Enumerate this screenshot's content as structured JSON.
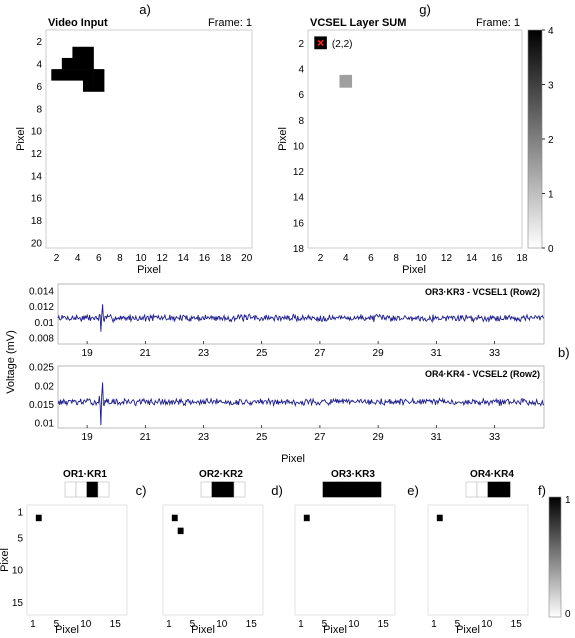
{
  "panels": {
    "a": {
      "letter": "a)",
      "title": "Video Input",
      "frame": "Frame: 1",
      "xlabel": "Pixel",
      "ylabel": "Pixel",
      "xlim": [
        1,
        20.5
      ],
      "ylim": [
        1,
        20.5
      ],
      "xticks": [
        2,
        4,
        6,
        8,
        10,
        12,
        14,
        16,
        18,
        20
      ],
      "yticks": [
        2,
        4,
        6,
        8,
        10,
        12,
        14,
        16,
        18,
        20
      ],
      "pixels": [
        [
          4,
          3
        ],
        [
          5,
          3
        ],
        [
          3,
          4
        ],
        [
          4,
          4
        ],
        [
          5,
          4
        ],
        [
          2,
          5
        ],
        [
          3,
          5
        ],
        [
          4,
          5
        ],
        [
          5,
          5
        ],
        [
          6,
          5
        ],
        [
          5,
          6
        ],
        [
          6,
          6
        ]
      ]
    },
    "g": {
      "letter": "g)",
      "title": "VCSEL Layer SUM",
      "frame": "Frame: 1",
      "xlabel": "Pixel",
      "ylabel": "Pixel",
      "xlim": [
        1,
        18
      ],
      "ylim": [
        1,
        18
      ],
      "xticks": [
        2,
        4,
        6,
        8,
        10,
        12,
        14,
        16,
        18
      ],
      "yticks": [
        2,
        4,
        6,
        8,
        10,
        12,
        14,
        16,
        18
      ],
      "cells": [
        {
          "x": 2,
          "y": 2,
          "v": 4
        },
        {
          "x": 4,
          "y": 5,
          "v": 1.5
        }
      ],
      "marker": {
        "x": 2,
        "y": 2,
        "label": "(2,2)",
        "color": "#ff2020"
      },
      "colorbar": {
        "min": 0,
        "max": 4,
        "ticks": [
          0,
          1,
          2,
          3,
          4
        ]
      }
    },
    "b": {
      "letter": "b)",
      "ylabel": "Voltage (mV)",
      "xlabel": "Pixel",
      "xlim": [
        18,
        34.7
      ],
      "xticks": [
        19,
        21,
        23,
        25,
        27,
        29,
        31,
        33
      ],
      "line_color": "#1f1f8f",
      "traces": [
        {
          "label": "OR3·KR3 - VCSEL1 (Row2)",
          "ylim": [
            0.0072,
            0.0148
          ],
          "yticks": [
            0.008,
            0.01,
            0.012,
            0.014
          ],
          "ytick_labels": [
            "0.008",
            "0.01",
            "0.012",
            "0.014"
          ],
          "base": 0.0105,
          "noise": 0.00035,
          "spike": {
            "x": 19.5,
            "amp": 0.0019,
            "seed": 7
          }
        },
        {
          "label": "OR4·KR4 - VCSEL2 (Row2)",
          "ylim": [
            0.0085,
            0.0252
          ],
          "yticks": [
            0.01,
            0.015,
            0.02,
            0.025
          ],
          "ytick_labels": [
            "0.01",
            "0.015",
            "0.02",
            "0.025"
          ],
          "base": 0.0155,
          "noise": 0.0007,
          "spike": {
            "x": 19.5,
            "amp": 0.0065,
            "seed": 13
          }
        }
      ]
    },
    "kernels": [
      {
        "letter": "c)",
        "title": "OR1·KR1",
        "bar": [
          0,
          0,
          1,
          0
        ],
        "pixels": [
          [
            2,
            2
          ]
        ],
        "show_ylabels": true
      },
      {
        "letter": "d)",
        "title": "OR2·KR2",
        "bar": [
          0,
          1,
          1,
          0
        ],
        "pixels": [
          [
            2,
            2
          ],
          [
            3,
            4
          ]
        ],
        "show_ylabels": false
      },
      {
        "letter": "e)",
        "title": "OR3·KR3",
        "bar": [
          1,
          1,
          1,
          1
        ],
        "pixels": [
          [
            2,
            2
          ]
        ],
        "show_ylabels": false
      },
      {
        "letter": "f)",
        "title": "OR4·KR4",
        "bar": [
          0,
          0,
          1,
          1
        ],
        "pixels": [
          [
            2,
            2
          ]
        ],
        "show_ylabels": false
      }
    ],
    "kernel_axes": {
      "xlabel": "Pixel",
      "ylabel": "Pixel",
      "xlim": [
        0,
        17
      ],
      "ylim": [
        0,
        17
      ],
      "xticks": [
        1,
        5,
        10,
        15
      ],
      "yticks": [
        1,
        5,
        10,
        15
      ]
    },
    "kernel_colorbar": {
      "min": 0,
      "max": 1,
      "ticks": [
        0,
        1
      ]
    }
  }
}
